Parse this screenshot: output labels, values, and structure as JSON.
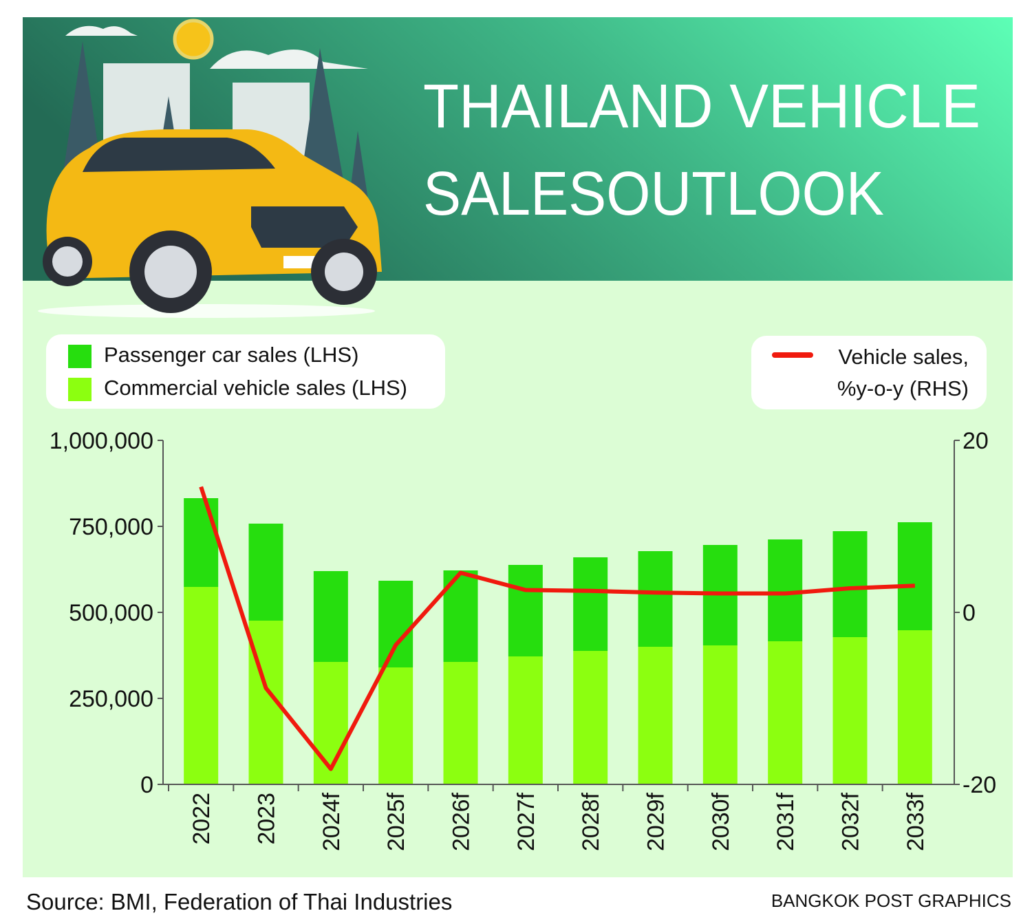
{
  "chart_data": {
    "type": "bar",
    "stacked": true,
    "title": [
      "THAILAND VEHICLE",
      "SALESOUTLOOK"
    ],
    "categories": [
      "2022",
      "2023",
      "2024f",
      "2025f",
      "2026f",
      "2027f",
      "2028f",
      "2029f",
      "2030f",
      "2031f",
      "2032f",
      "2033f"
    ],
    "series": [
      {
        "name": "Commercial vehicle sales (LHS)",
        "color": "#8cff10",
        "values": [
          574000,
          476000,
          356000,
          340000,
          356000,
          372000,
          388000,
          400000,
          404000,
          416000,
          428000,
          448000
        ]
      },
      {
        "name": "Passenger car sales (LHS)",
        "color": "#26de0e",
        "values": [
          258000,
          282000,
          264000,
          252000,
          266000,
          266000,
          272000,
          278000,
          292000,
          296000,
          308000,
          314000
        ]
      },
      {
        "name": "Vehicle sales, %y-o-y (RHS)",
        "color": "#f01a0e",
        "type": "line",
        "axis": "y2",
        "values": [
          14.6,
          -8.8,
          -18.2,
          -3.8,
          4.6,
          2.6,
          2.5,
          2.3,
          2.2,
          2.2,
          2.8,
          3.1
        ]
      }
    ],
    "ylim": [
      0,
      1000000
    ],
    "yticks": [
      0,
      {
        "value": 250000,
        "label": "250,000"
      },
      {
        "value": 500000,
        "label": "500,000"
      },
      {
        "value": 750000,
        "label": "750,000"
      },
      {
        "value": 1000000,
        "label": "1,000,000"
      }
    ],
    "y2lim": [
      -20,
      20
    ],
    "y2ticks": [
      -20,
      0,
      20
    ],
    "grid": false,
    "source": "Source: BMI, Federation of Thai Industries",
    "credit": "BANGKOK POST GRAPHICS"
  }
}
